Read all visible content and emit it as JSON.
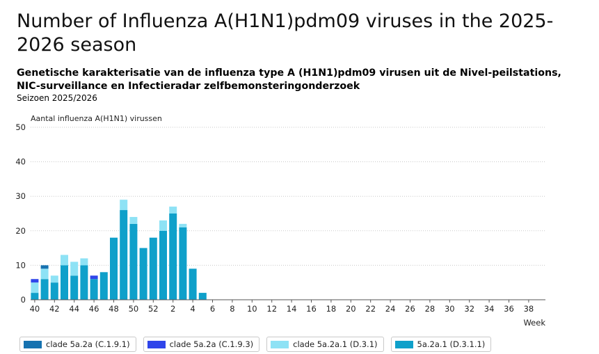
{
  "title": "Number of Influenza A(H1N1)pdm09 viruses in the 2025-2026 season",
  "subtitle": "Genetische karakterisatie van de influenza type A (H1N1)pdm09 virusen uit de Nivel-peilstations, NIC-surveillance en Infectieradar zelfbemonsteringonderzoek",
  "season": "Seizoen 2025/2026",
  "chart_data": {
    "type": "bar",
    "stacked": true,
    "title": "Number of Influenza A(H1N1)pdm09 viruses in the 2025-2026 season",
    "ylabel": "Aantal influenza A(H1N1) virussen",
    "xlabel": "Week",
    "ylim": [
      0,
      50
    ],
    "yticks": [
      0,
      10,
      20,
      30,
      40,
      50
    ],
    "grid": true,
    "legend_position": "bottom",
    "categories": [
      "40",
      "41",
      "42",
      "43",
      "44",
      "45",
      "46",
      "47",
      "48",
      "49",
      "50",
      "51",
      "52",
      "1",
      "2",
      "3",
      "4",
      "5",
      "6",
      "7",
      "8",
      "9",
      "10",
      "11",
      "12",
      "13",
      "14",
      "15",
      "16",
      "17",
      "18",
      "19",
      "20",
      "21",
      "22",
      "23",
      "24",
      "25",
      "26",
      "27",
      "28",
      "29",
      "30",
      "31",
      "32",
      "33",
      "34",
      "35",
      "36",
      "37",
      "38",
      "39"
    ],
    "xtick_labels": [
      "40",
      "42",
      "44",
      "46",
      "48",
      "50",
      "52",
      "2",
      "4",
      "6",
      "8",
      "10",
      "12",
      "14",
      "16",
      "18",
      "20",
      "22",
      "24",
      "26",
      "28",
      "30",
      "32",
      "34",
      "36",
      "38"
    ],
    "series": [
      {
        "name": "5a.2a.1 (D.3.1.1)",
        "color": "#0fa0ca",
        "values": [
          2,
          6,
          5,
          10,
          7,
          10,
          6,
          8,
          18,
          26,
          22,
          15,
          18,
          20,
          25,
          21,
          9,
          2,
          0,
          0,
          0,
          0,
          0,
          0,
          0,
          0,
          0,
          0,
          0,
          0,
          0,
          0,
          0,
          0,
          0,
          0,
          0,
          0,
          0,
          0,
          0,
          0,
          0,
          0,
          0,
          0,
          0,
          0,
          0,
          0,
          0,
          0
        ]
      },
      {
        "name": "clade 5a.2a.1 (D.3.1)",
        "color": "#8ee2f5",
        "values": [
          3,
          3,
          2,
          3,
          4,
          2,
          0,
          0,
          0,
          3,
          2,
          0,
          0,
          3,
          2,
          1,
          0,
          0,
          0,
          0,
          0,
          0,
          0,
          0,
          0,
          0,
          0,
          0,
          0,
          0,
          0,
          0,
          0,
          0,
          0,
          0,
          0,
          0,
          0,
          0,
          0,
          0,
          0,
          0,
          0,
          0,
          0,
          0,
          0,
          0,
          0,
          0
        ]
      },
      {
        "name": "clade 5a.2a (C.1.9.3)",
        "color": "#2f45ea",
        "values": [
          1,
          0,
          0,
          0,
          0,
          0,
          1,
          0,
          0,
          0,
          0,
          0,
          0,
          0,
          0,
          0,
          0,
          0,
          0,
          0,
          0,
          0,
          0,
          0,
          0,
          0,
          0,
          0,
          0,
          0,
          0,
          0,
          0,
          0,
          0,
          0,
          0,
          0,
          0,
          0,
          0,
          0,
          0,
          0,
          0,
          0,
          0,
          0,
          0,
          0,
          0,
          0
        ]
      },
      {
        "name": "clade 5a.2a (C.1.9.1)",
        "color": "#1672b0",
        "values": [
          0,
          1,
          0,
          0,
          0,
          0,
          0,
          0,
          0,
          0,
          0,
          0,
          0,
          0,
          0,
          0,
          0,
          0,
          0,
          0,
          0,
          0,
          0,
          0,
          0,
          0,
          0,
          0,
          0,
          0,
          0,
          0,
          0,
          0,
          0,
          0,
          0,
          0,
          0,
          0,
          0,
          0,
          0,
          0,
          0,
          0,
          0,
          0,
          0,
          0,
          0,
          0
        ]
      }
    ],
    "legend": [
      {
        "label": "clade 5a.2a (C.1.9.1)",
        "color": "#1672b0"
      },
      {
        "label": "clade 5a.2a (C.1.9.3)",
        "color": "#2f45ea"
      },
      {
        "label": "clade 5a.2a.1 (D.3.1)",
        "color": "#8ee2f5"
      },
      {
        "label": "5a.2a.1 (D.3.1.1)",
        "color": "#0fa0ca"
      }
    ]
  }
}
